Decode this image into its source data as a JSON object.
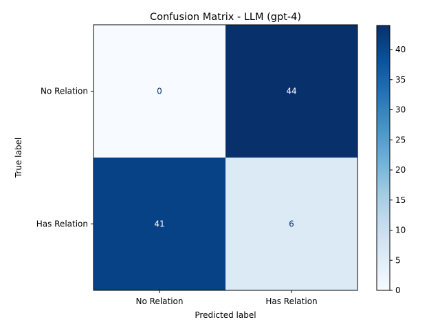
{
  "chart_data": {
    "type": "heatmap",
    "title": "Confusion Matrix - LLM (gpt-4)",
    "xlabel": "Predicted label",
    "ylabel": "True label",
    "x_categories": [
      "No Relation",
      "Has Relation"
    ],
    "y_categories": [
      "No Relation",
      "Has Relation"
    ],
    "values": [
      [
        0,
        44
      ],
      [
        41,
        6
      ]
    ],
    "colormap": "Blues",
    "colorbar": {
      "range": [
        0,
        44
      ],
      "ticks": [
        0,
        5,
        10,
        15,
        20,
        25,
        30,
        35,
        40
      ]
    },
    "grid": false,
    "colors": {
      "low": "#f7fbff",
      "high": "#08306b",
      "text_light": "#ffffff",
      "text_dark": "#08306b"
    }
  }
}
